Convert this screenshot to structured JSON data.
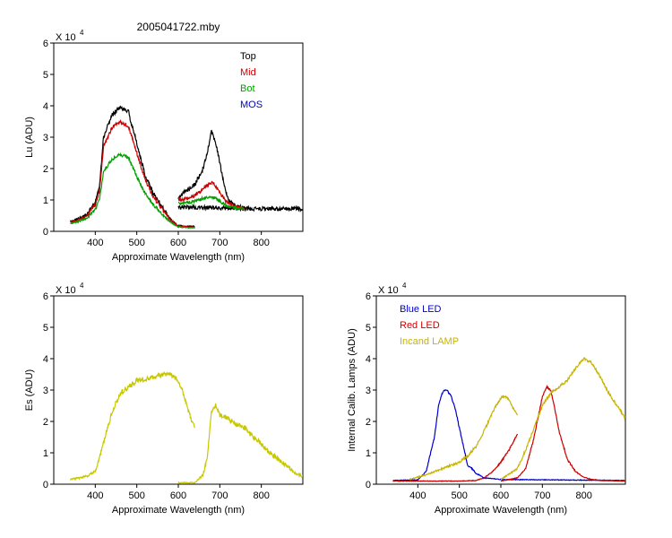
{
  "chart_data": [
    {
      "type": "line",
      "title": "2005041722.mby",
      "xlabel": "Approximate Wavelength (nm)",
      "ylabel": "Lu (ADU)",
      "multiplier": "X 10",
      "multiplier_exp": "4",
      "xlim": [
        300,
        900
      ],
      "ylim": [
        0,
        6
      ],
      "x_ticks": [
        400,
        500,
        600,
        700,
        800
      ],
      "x_tick_labels": [
        "400",
        "500",
        "600",
        "700",
        "800"
      ],
      "y_ticks": [
        0,
        1,
        2,
        3,
        4,
        5,
        6
      ],
      "y_tick_labels": [
        "0",
        "1",
        "2",
        "3",
        "4",
        "5",
        "6"
      ],
      "legend_position": "top-right",
      "series": [
        {
          "name": "Top",
          "color": "#000000",
          "noise": 0.07,
          "segments": [
            {
              "x": [
                340,
                360,
                380,
                400,
                410,
                420,
                440,
                460,
                480,
                500,
                520,
                540,
                560,
                580,
                600,
                620,
                640
              ],
              "y": [
                0.3,
                0.4,
                0.55,
                0.9,
                1.4,
                3.0,
                3.7,
                3.95,
                3.8,
                2.8,
                1.8,
                1.2,
                0.8,
                0.4,
                0.18,
                0.16,
                0.15
              ]
            },
            {
              "x": [
                600,
                610,
                620,
                640,
                660,
                670,
                680,
                690,
                700,
                710,
                720,
                740,
                760
              ],
              "y": [
                1.05,
                1.2,
                1.3,
                1.5,
                2.0,
                2.5,
                3.2,
                2.8,
                2.2,
                1.5,
                1.0,
                0.78,
                0.74
              ]
            },
            {
              "x": [
                600,
                700,
                800,
                900
              ],
              "y": [
                0.78,
                0.74,
                0.72,
                0.72
              ]
            }
          ]
        },
        {
          "name": "Mid",
          "color": "#cc0000",
          "noise": 0.06,
          "segments": [
            {
              "x": [
                340,
                360,
                380,
                400,
                410,
                420,
                440,
                460,
                480,
                500,
                520,
                540,
                560,
                580,
                600,
                620,
                640
              ],
              "y": [
                0.27,
                0.36,
                0.5,
                0.85,
                1.25,
                2.7,
                3.3,
                3.5,
                3.35,
                2.5,
                1.65,
                1.1,
                0.72,
                0.38,
                0.16,
                0.14,
                0.13
              ]
            },
            {
              "x": [
                600,
                620,
                640,
                660,
                680,
                690,
                700,
                720,
                740,
                760
              ],
              "y": [
                1.0,
                1.05,
                1.15,
                1.35,
                1.55,
                1.45,
                1.2,
                0.9,
                0.76,
                0.73
              ]
            }
          ]
        },
        {
          "name": "Bot",
          "color": "#00a000",
          "noise": 0.05,
          "segments": [
            {
              "x": [
                340,
                360,
                380,
                400,
                410,
                420,
                440,
                460,
                480,
                500,
                520,
                540,
                560,
                580,
                600,
                620,
                640
              ],
              "y": [
                0.24,
                0.32,
                0.42,
                0.7,
                1.0,
                1.9,
                2.3,
                2.45,
                2.35,
                1.75,
                1.2,
                0.85,
                0.55,
                0.3,
                0.14,
                0.12,
                0.11
              ]
            },
            {
              "x": [
                600,
                620,
                640,
                660,
                680,
                690,
                700,
                720,
                740,
                760
              ],
              "y": [
                0.9,
                0.92,
                0.95,
                1.05,
                1.1,
                1.05,
                0.95,
                0.8,
                0.74,
                0.72
              ]
            }
          ]
        },
        {
          "name": "MOS",
          "color": "#0000cc",
          "noise": 0,
          "segments": []
        }
      ]
    },
    {
      "type": "line",
      "title": "",
      "xlabel": "Approximate Wavelength (nm)",
      "ylabel": "Es (ADU)",
      "multiplier": "X 10",
      "multiplier_exp": "4",
      "xlim": [
        300,
        900
      ],
      "ylim": [
        0,
        6
      ],
      "x_ticks": [
        400,
        500,
        600,
        700,
        800
      ],
      "x_tick_labels": [
        "400",
        "500",
        "600",
        "700",
        "800"
      ],
      "y_ticks": [
        0,
        1,
        2,
        3,
        4,
        5,
        6
      ],
      "y_tick_labels": [
        "0",
        "1",
        "2",
        "3",
        "4",
        "5",
        "6"
      ],
      "series": [
        {
          "color": "#c8c800",
          "noise": 0.08,
          "segments": [
            {
              "x": [
                340,
                380,
                400,
                420,
                440,
                460,
                480,
                500,
                520,
                540,
                560,
                580,
                600,
                610,
                620,
                630,
                640
              ],
              "y": [
                0.15,
                0.25,
                0.4,
                1.3,
                2.3,
                2.9,
                3.1,
                3.3,
                3.35,
                3.4,
                3.5,
                3.5,
                3.3,
                3.0,
                2.5,
                2.1,
                1.8
              ]
            },
            {
              "x": [
                600,
                640,
                660,
                670,
                680,
                690,
                700,
                720,
                740,
                760,
                780,
                800,
                820,
                840,
                860,
                880,
                900
              ],
              "y": [
                0.05,
                0.05,
                0.3,
                0.9,
                2.3,
                2.5,
                2.2,
                2.1,
                1.9,
                1.8,
                1.5,
                1.3,
                1.0,
                0.8,
                0.6,
                0.35,
                0.25
              ]
            }
          ]
        }
      ]
    },
    {
      "type": "line",
      "title": "",
      "xlabel": "Approximate Wavelength (nm)",
      "ylabel": "Internal Calib. Lamps (ADU)",
      "multiplier": "X 10",
      "multiplier_exp": "4",
      "xlim": [
        300,
        900
      ],
      "ylim": [
        0,
        6
      ],
      "x_ticks": [
        400,
        500,
        600,
        700,
        800
      ],
      "x_tick_labels": [
        "400",
        "500",
        "600",
        "700",
        "800"
      ],
      "y_ticks": [
        0,
        1,
        2,
        3,
        4,
        5,
        6
      ],
      "y_tick_labels": [
        "0",
        "1",
        "2",
        "3",
        "4",
        "5",
        "6"
      ],
      "legend_position": "top-left",
      "series": [
        {
          "name": "Blue LED",
          "color": "#0000cc",
          "noise": 0.03,
          "segments": [
            {
              "x": [
                340,
                400,
                420,
                440,
                450,
                460,
                470,
                480,
                490,
                500,
                510,
                520,
                530,
                540,
                560,
                600,
                700,
                800,
                900
              ],
              "y": [
                0.12,
                0.14,
                0.4,
                1.5,
                2.5,
                2.95,
                3.0,
                2.8,
                2.4,
                1.8,
                1.2,
                0.6,
                0.5,
                0.35,
                0.2,
                0.15,
                0.14,
                0.13,
                0.12
              ]
            }
          ]
        },
        {
          "name": "Red LED",
          "color": "#cc0000",
          "noise": 0.03,
          "segments": [
            {
              "x": [
                340,
                500,
                540,
                560,
                580,
                600,
                620,
                640
              ],
              "y": [
                0.1,
                0.1,
                0.12,
                0.2,
                0.4,
                0.7,
                1.1,
                1.6
              ]
            },
            {
              "x": [
                600,
                640,
                660,
                680,
                700,
                710,
                720,
                730,
                740,
                760,
                780,
                800,
                820,
                840,
                900
              ],
              "y": [
                0.1,
                0.2,
                0.5,
                1.5,
                2.8,
                3.1,
                3.0,
                2.4,
                1.7,
                0.8,
                0.4,
                0.22,
                0.15,
                0.12,
                0.1
              ]
            }
          ]
        },
        {
          "name": "Incand LAMP",
          "color": "#c8b400",
          "noise": 0.04,
          "segments": [
            {
              "x": [
                380,
                420,
                460,
                500,
                520,
                540,
                560,
                580,
                600,
                610,
                620,
                630,
                640
              ],
              "y": [
                0.15,
                0.3,
                0.5,
                0.7,
                0.9,
                1.2,
                1.7,
                2.3,
                2.75,
                2.8,
                2.7,
                2.4,
                2.2
              ]
            },
            {
              "x": [
                600,
                640,
                660,
                680,
                700,
                720,
                740,
                760,
                780,
                800,
                820,
                840,
                860,
                880,
                900
              ],
              "y": [
                0.15,
                0.5,
                1.1,
                1.8,
                2.5,
                2.9,
                3.1,
                3.3,
                3.7,
                4.0,
                3.85,
                3.4,
                2.9,
                2.5,
                2.1
              ]
            }
          ]
        }
      ]
    }
  ]
}
